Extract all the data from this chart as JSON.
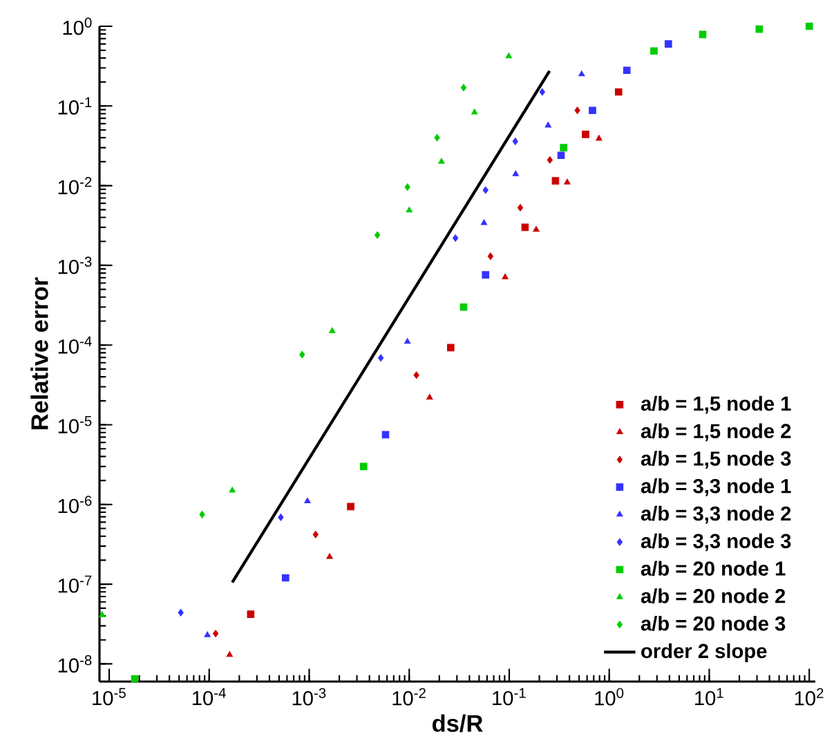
{
  "chart_data": {
    "type": "scatter",
    "xlabel": "ds/R",
    "ylabel": "Relative error",
    "log": "xy",
    "legend": "bottom right",
    "xlim": [
      8e-06,
      115
    ],
    "ylim": [
      6e-09,
      1
    ],
    "xticks": [
      {
        "value": 1e-05,
        "label": "10$^{-5}$"
      },
      {
        "value": 0.0001,
        "label": "10$^{-4}$"
      },
      {
        "value": 0.001,
        "label": "10$^{-3}$"
      },
      {
        "value": 0.01,
        "label": "10$^{-2}$"
      },
      {
        "value": 0.1,
        "label": "10$^{-1}$"
      },
      {
        "value": 1,
        "label": "10$^{0}$"
      },
      {
        "value": 10,
        "label": "10$^{1}$"
      },
      {
        "value": 100,
        "label": "10$^{2}$"
      }
    ],
    "yticks": [
      {
        "value": 1e-08,
        "label": "10$^{-8}$"
      },
      {
        "value": 1e-07,
        "label": "10$^{-7}$"
      },
      {
        "value": 1e-06,
        "label": "10$^{-6}$"
      },
      {
        "value": 1e-05,
        "label": "10$^{-5}$"
      },
      {
        "value": 0.0001,
        "label": "10$^{-4}$"
      },
      {
        "value": 0.001,
        "label": "10$^{-3}$"
      },
      {
        "value": 0.01,
        "label": "10$^{-2}$"
      },
      {
        "value": 0.1,
        "label": "10$^{-1}$"
      },
      {
        "value": 1,
        "label": "10$^{0}$"
      }
    ],
    "series": [
      {
        "name": "a/b = 1,5 node 1",
        "color": "#cc0000",
        "marker": "square",
        "x": [
          1.24,
          0.58,
          0.29,
          0.144,
          0.026,
          0.0026,
          0.00026
        ],
        "values": [
          0.15,
          0.044,
          0.0115,
          0.003,
          9.3e-05,
          9.4e-07,
          4.2e-08
        ]
      },
      {
        "name": "a/b = 1,5 node 2",
        "color": "#cc0000",
        "marker": "triangle",
        "x": [
          0.79,
          0.38,
          0.186,
          0.091,
          0.016,
          0.0016,
          0.00016
        ],
        "values": [
          0.039,
          0.011,
          0.0028,
          0.00071,
          2.2e-05,
          2.2e-07,
          1.3e-08
        ]
      },
      {
        "name": "a/b = 1,5 node 3",
        "color": "#cc0000",
        "marker": "diamond",
        "x": [
          0.48,
          0.255,
          0.129,
          0.065,
          0.0118,
          0.00116,
          0.000116
        ],
        "values": [
          0.088,
          0.021,
          0.0053,
          0.0013,
          4.2e-05,
          4.2e-07,
          2.4e-08
        ]
      },
      {
        "name": "a/b = 3,3 node 1",
        "color": "#3333ff",
        "marker": "square",
        "x": [
          3.9,
          1.5,
          0.68,
          0.33,
          0.058,
          0.0058,
          0.00058
        ],
        "values": [
          0.6,
          0.28,
          0.088,
          0.024,
          0.00076,
          7.5e-06,
          1.2e-07
        ]
      },
      {
        "name": "a/b = 3,3 node 2",
        "color": "#3333ff",
        "marker": "triangle",
        "x": [
          0.53,
          0.245,
          0.116,
          0.056,
          0.0096,
          0.00096,
          9.6e-05
        ],
        "values": [
          0.25,
          0.057,
          0.014,
          0.0034,
          0.00011,
          1.1e-06,
          2.3e-08
        ]
      },
      {
        "name": "a/b = 3,3 node 3",
        "color": "#3333ff",
        "marker": "diamond",
        "x": [
          0.214,
          0.115,
          0.058,
          0.029,
          0.0052,
          0.00052,
          5.2e-05
        ],
        "values": [
          0.15,
          0.036,
          0.0088,
          0.0022,
          6.9e-05,
          6.9e-07,
          4.4e-08
        ]
      },
      {
        "name": "a/b = 20 node 1",
        "color": "#00cc00",
        "marker": "square",
        "x": [
          100,
          31.6,
          8.6,
          2.8,
          0.35,
          0.035,
          0.0035,
          1.8e-05
        ],
        "values": [
          1,
          0.92,
          0.79,
          0.49,
          0.03,
          0.0003,
          3e-06,
          6.5e-09
        ]
      },
      {
        "name": "a/b = 20 node 2",
        "color": "#00cc00",
        "marker": "triangle",
        "x": [
          0.099,
          0.045,
          0.021,
          0.01,
          0.0017,
          0.00017,
          8.5e-06
        ],
        "values": [
          0.42,
          0.083,
          0.02,
          0.0049,
          0.00015,
          1.5e-06,
          4.1e-08
        ]
      },
      {
        "name": "a/b = 20 node 3",
        "color": "#00cc00",
        "marker": "diamond",
        "x": [
          0.035,
          0.019,
          0.0096,
          0.0048,
          0.00085,
          8.5e-05
        ],
        "values": [
          0.17,
          0.04,
          0.0096,
          0.0024,
          7.6e-05,
          7.5e-07
        ]
      },
      {
        "name": "order 2 slope",
        "type": "line",
        "color": "#000000",
        "marker": "none",
        "x": [
          0.00017,
          0.253
        ],
        "values": [
          1.05e-07,
          0.275
        ]
      }
    ]
  }
}
